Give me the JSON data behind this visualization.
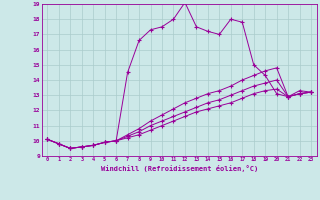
{
  "xlabel": "Windchill (Refroidissement éolien,°C)",
  "background_color": "#cce8e8",
  "grid_color": "#aacccc",
  "line_color": "#990099",
  "xlim": [
    -0.5,
    23.5
  ],
  "ylim": [
    9,
    19
  ],
  "xticks": [
    0,
    1,
    2,
    3,
    4,
    5,
    6,
    7,
    8,
    9,
    10,
    11,
    12,
    13,
    14,
    15,
    16,
    17,
    18,
    19,
    20,
    21,
    22,
    23
  ],
  "yticks": [
    9,
    10,
    11,
    12,
    13,
    14,
    15,
    16,
    17,
    18,
    19
  ],
  "series": [
    [
      10.1,
      9.8,
      9.5,
      9.6,
      9.7,
      9.9,
      10.0,
      14.5,
      16.6,
      17.3,
      17.5,
      18.0,
      19.1,
      17.5,
      17.2,
      17.0,
      18.0,
      17.8,
      15.0,
      14.3,
      13.1,
      12.9,
      13.3,
      13.2
    ],
    [
      10.1,
      9.8,
      9.5,
      9.6,
      9.7,
      9.9,
      10.0,
      10.2,
      10.4,
      10.7,
      11.0,
      11.3,
      11.6,
      11.9,
      12.1,
      12.3,
      12.5,
      12.8,
      13.1,
      13.3,
      13.4,
      12.9,
      13.1,
      13.2
    ],
    [
      10.1,
      9.8,
      9.5,
      9.6,
      9.7,
      9.9,
      10.0,
      10.3,
      10.6,
      11.0,
      11.3,
      11.6,
      11.9,
      12.2,
      12.5,
      12.7,
      13.0,
      13.3,
      13.6,
      13.8,
      14.0,
      12.9,
      13.1,
      13.2
    ],
    [
      10.1,
      9.8,
      9.5,
      9.6,
      9.7,
      9.9,
      10.0,
      10.4,
      10.8,
      11.3,
      11.7,
      12.1,
      12.5,
      12.8,
      13.1,
      13.3,
      13.6,
      14.0,
      14.3,
      14.6,
      14.8,
      12.9,
      13.1,
      13.2
    ]
  ]
}
